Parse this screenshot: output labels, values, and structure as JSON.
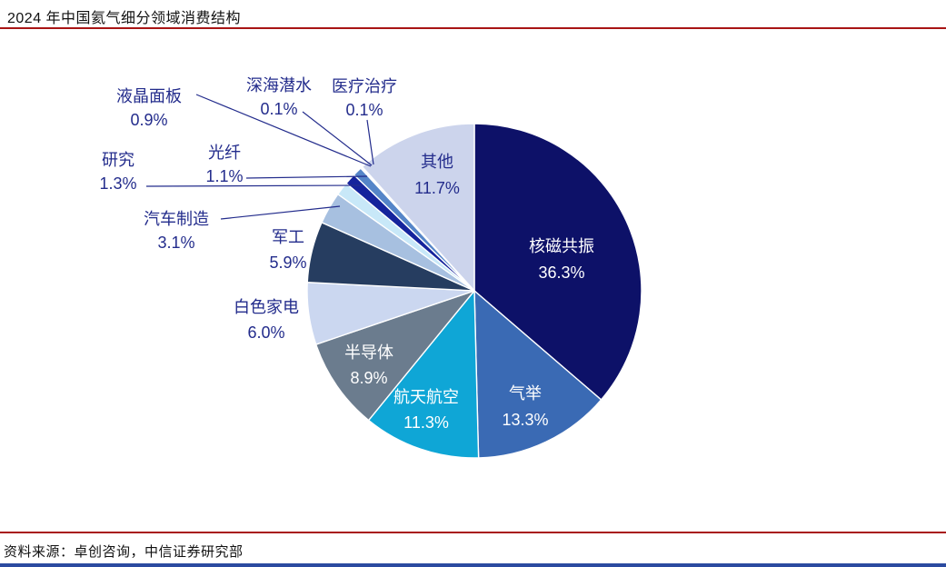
{
  "title": "2024 年中国氦气细分领域消费结构",
  "source": "资料来源：卓创咨询，中信证券研究部",
  "colors": {
    "rule_red": "#a81414",
    "label_navy": "#232c8c",
    "inside_label_white": "#ffffff",
    "bottom_bar_blue": "#2b4aa0",
    "slice_stroke": "#ffffff"
  },
  "chart_data": {
    "type": "pie",
    "title": "2024 年中国氦气细分领域消费结构",
    "unit": "%",
    "start_angle_deg": 0,
    "direction": "clockwise",
    "legend": "none",
    "slices": [
      {
        "id": "mri",
        "label": "核磁共振",
        "value": 36.3,
        "color": "#0d1168",
        "label_style": "inside-white"
      },
      {
        "id": "gas-lift",
        "label": "气举",
        "value": 13.3,
        "color": "#3a6ab4",
        "label_style": "inside-white"
      },
      {
        "id": "aerospace",
        "label": "航天航空",
        "value": 11.3,
        "color": "#0fa6d6",
        "label_style": "inside-white"
      },
      {
        "id": "semiconductor",
        "label": "半导体",
        "value": 8.9,
        "color": "#6b7c8e",
        "label_style": "inside-white"
      },
      {
        "id": "white-goods",
        "label": "白色家电",
        "value": 6.0,
        "color": "#cbd7f0",
        "label_style": "outside"
      },
      {
        "id": "military",
        "label": "军工",
        "value": 5.9,
        "color": "#263d60",
        "label_style": "outside"
      },
      {
        "id": "automotive",
        "label": "汽车制造",
        "value": 3.1,
        "color": "#a7c0e0",
        "label_style": "outside"
      },
      {
        "id": "research",
        "label": "研究",
        "value": 1.3,
        "color": "#c8e8f8",
        "label_style": "outside"
      },
      {
        "id": "optical-fiber",
        "label": "光纤",
        "value": 1.1,
        "color": "#15239c",
        "label_style": "outside"
      },
      {
        "id": "lcd-panel",
        "label": "液晶面板",
        "value": 0.9,
        "color": "#5585c8",
        "label_style": "outside"
      },
      {
        "id": "deep-sea-diving",
        "label": "深海潜水",
        "value": 0.1,
        "color": "#8ab0dd",
        "label_style": "outside"
      },
      {
        "id": "medical-treatment",
        "label": "医疗治疗",
        "value": 0.1,
        "color": "#dde7f5",
        "label_style": "outside"
      },
      {
        "id": "others",
        "label": "其他",
        "value": 11.7,
        "color": "#ccd4ec",
        "label_style": "inside-navy"
      }
    ]
  }
}
